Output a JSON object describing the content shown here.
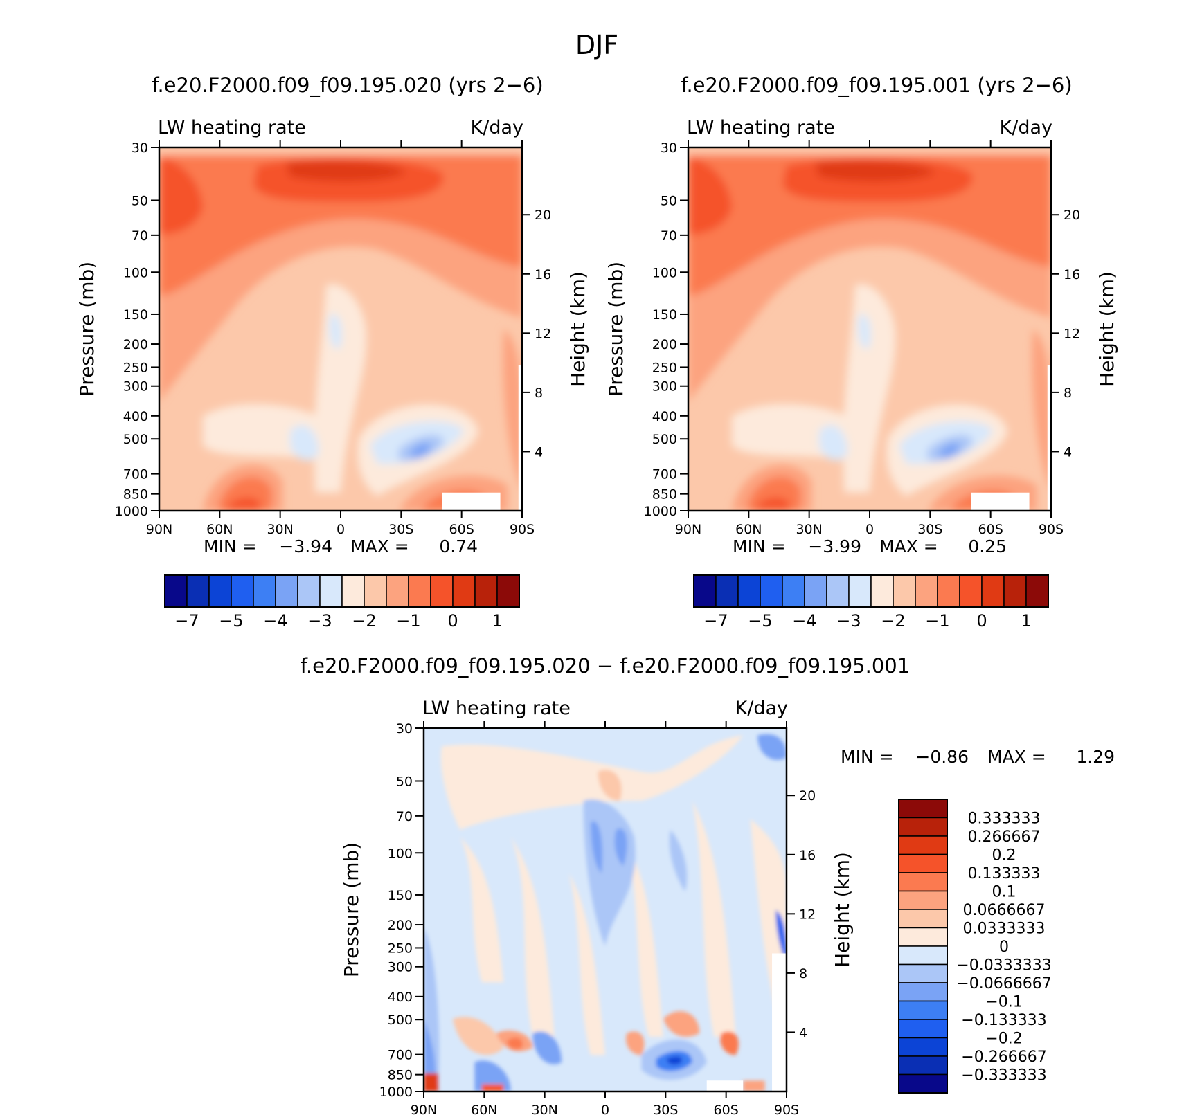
{
  "figure": {
    "title": "DJF"
  },
  "colors": {
    "ramp": [
      "#08088a",
      "#0a2fb4",
      "#0c44d6",
      "#1f5ff0",
      "#3d7ff4",
      "#7aa3f5",
      "#abc6f7",
      "#d8e8fb",
      "#fdeadc",
      "#fcc8aa",
      "#fca37f",
      "#fb7a50",
      "#f5532a",
      "#e03a14",
      "#b8220a",
      "#8c0a08"
    ]
  },
  "chart_data": [
    {
      "type": "heatmap",
      "title": "f.e20.F2000.f09_f09.195.020 (yrs 2−6)",
      "left_label": "LW heating rate",
      "right_label": "K/day",
      "ylabel": "Pressure (mb)",
      "y2label": "Height (km)",
      "x_ticks": [
        "90N",
        "60N",
        "30N",
        "0",
        "30S",
        "60S",
        "90S"
      ],
      "y_ticks": [
        "30",
        "50",
        "70",
        "100",
        "150",
        "200",
        "250",
        "300",
        "400",
        "500",
        "700",
        "850",
        "1000"
      ],
      "y2_ticks": [
        "20",
        "16",
        "12",
        "8",
        "4"
      ],
      "ylim": [
        1000,
        30
      ],
      "min_label": "MIN =",
      "min_value": "−3.94",
      "max_label": "MAX =",
      "max_value": "0.74",
      "colorbar_labels": [
        "−7",
        "−5",
        "−4",
        "−3",
        "−2",
        "−1",
        "0",
        "1"
      ]
    },
    {
      "type": "heatmap",
      "title": "f.e20.F2000.f09_f09.195.001 (yrs 2−6)",
      "left_label": "LW heating rate",
      "right_label": "K/day",
      "ylabel": "Pressure (mb)",
      "y2label": "Height (km)",
      "x_ticks": [
        "90N",
        "60N",
        "30N",
        "0",
        "30S",
        "60S",
        "90S"
      ],
      "y_ticks": [
        "30",
        "50",
        "70",
        "100",
        "150",
        "200",
        "250",
        "300",
        "400",
        "500",
        "700",
        "850",
        "1000"
      ],
      "y2_ticks": [
        "20",
        "16",
        "12",
        "8",
        "4"
      ],
      "ylim": [
        1000,
        30
      ],
      "min_label": "MIN =",
      "min_value": "−3.99",
      "max_label": "MAX =",
      "max_value": "0.25",
      "colorbar_labels": [
        "−7",
        "−5",
        "−4",
        "−3",
        "−2",
        "−1",
        "0",
        "1"
      ]
    },
    {
      "type": "heatmap",
      "title": "f.e20.F2000.f09_f09.195.020 − f.e20.F2000.f09_f09.195.001",
      "left_label": "LW heating rate",
      "right_label": "K/day",
      "ylabel": "Pressure (mb)",
      "y2label": "Height (km)",
      "x_ticks": [
        "90N",
        "60N",
        "30N",
        "0",
        "30S",
        "60S",
        "90S"
      ],
      "y_ticks": [
        "30",
        "50",
        "70",
        "100",
        "150",
        "200",
        "250",
        "300",
        "400",
        "500",
        "700",
        "850",
        "1000"
      ],
      "y2_ticks": [
        "20",
        "16",
        "12",
        "8",
        "4"
      ],
      "ylim": [
        1000,
        30
      ],
      "min_label": "MIN =",
      "min_value": "−0.86",
      "max_label": "MAX =",
      "max_value": "1.29",
      "colorbar_labels": [
        "0.333333",
        "0.266667",
        "0.2",
        "0.133333",
        "0.1",
        "0.0666667",
        "0.0333333",
        "0",
        "−0.0333333",
        "−0.0666667",
        "−0.1",
        "−0.133333",
        "−0.2",
        "−0.266667",
        "−0.333333"
      ]
    }
  ]
}
